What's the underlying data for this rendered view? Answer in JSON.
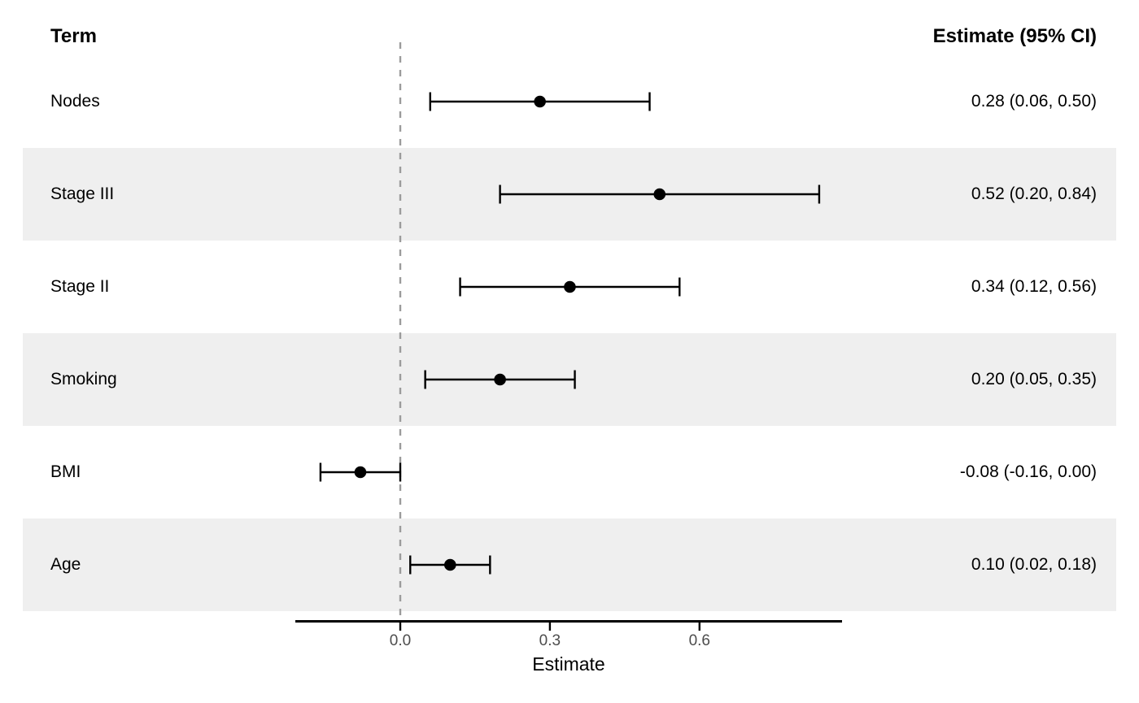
{
  "chart_data": {
    "type": "scatter",
    "subtype": "forest-plot",
    "columns": {
      "term": "Term",
      "estimate": "Estimate (95% CI)"
    },
    "rows": [
      {
        "term": "Nodes",
        "estimate": 0.28,
        "ci_low": 0.06,
        "ci_high": 0.5,
        "label": "0.28 (0.06, 0.50)",
        "striped": false
      },
      {
        "term": "Stage III",
        "estimate": 0.52,
        "ci_low": 0.2,
        "ci_high": 0.84,
        "label": "0.52 (0.20, 0.84)",
        "striped": true
      },
      {
        "term": "Stage II",
        "estimate": 0.34,
        "ci_low": 0.12,
        "ci_high": 0.56,
        "label": "0.34 (0.12, 0.56)",
        "striped": false
      },
      {
        "term": "Smoking",
        "estimate": 0.2,
        "ci_low": 0.05,
        "ci_high": 0.35,
        "label": "0.20 (0.05, 0.35)",
        "striped": true
      },
      {
        "term": "BMI",
        "estimate": -0.08,
        "ci_low": -0.16,
        "ci_high": 0.0,
        "label": "-0.08 (-0.16, 0.00)",
        "striped": false
      },
      {
        "term": "Age",
        "estimate": 0.1,
        "ci_low": 0.02,
        "ci_high": 0.18,
        "label": "0.10 (0.02, 0.18)",
        "striped": true
      }
    ],
    "xlabel": "Estimate",
    "x_ticks": [
      0.0,
      0.3,
      0.6
    ],
    "x_tick_labels": [
      "0.0",
      "0.3",
      "0.6"
    ],
    "xlim": [
      -0.21,
      0.89
    ],
    "reference_line": 0,
    "grid": false,
    "legend": "none",
    "colors": {
      "stripe": "#efefef",
      "marker": "#000000",
      "error_bar": "#000000",
      "reference_line": "#9c9c9c",
      "axis_line": "#000000",
      "tick_label": "#4d4d4d"
    }
  }
}
